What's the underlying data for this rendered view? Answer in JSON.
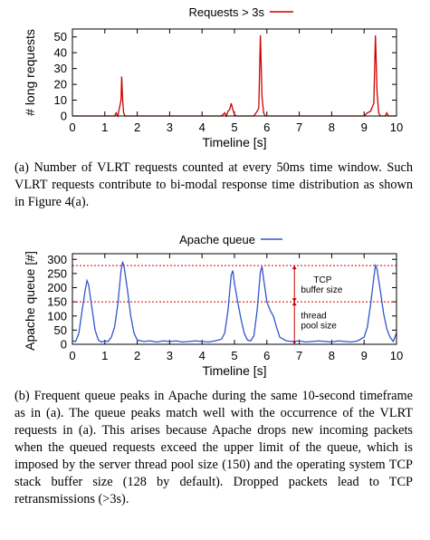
{
  "chart_data": [
    {
      "type": "line",
      "xlabel": "Timeline [s]",
      "ylabel": "# long requests",
      "xlim": [
        0,
        10
      ],
      "ylim": [
        0,
        55
      ],
      "xticks": [
        "0",
        "1",
        "2",
        "3",
        "4",
        "5",
        "6",
        "7",
        "8",
        "9",
        "10"
      ],
      "yticks": [
        "0",
        "10",
        "20",
        "30",
        "40",
        "50"
      ],
      "legend": "top-center",
      "grid": false,
      "series": [
        {
          "name": "Requests > 3s",
          "color": "#cc0000",
          "x": [
            0,
            1.3,
            1.35,
            1.4,
            1.45,
            1.5,
            1.52,
            1.55,
            1.58,
            1.62,
            1.7,
            4.6,
            4.7,
            4.75,
            4.8,
            4.85,
            4.9,
            4.95,
            5.0,
            5.05,
            5.1,
            5.6,
            5.7,
            5.75,
            5.8,
            5.85,
            5.9,
            5.95,
            6.0,
            9.0,
            9.1,
            9.2,
            9.3,
            9.35,
            9.4,
            9.45,
            9.5,
            9.65,
            9.7,
            9.75,
            10
          ],
          "y": [
            0,
            0,
            2,
            0,
            5,
            10,
            25,
            10,
            2,
            0,
            0,
            0,
            2,
            0,
            3,
            4,
            8,
            4,
            1,
            0,
            0,
            0,
            3,
            5,
            51,
            12,
            2,
            0,
            0,
            0,
            2,
            3,
            8,
            51,
            15,
            2,
            0,
            0,
            2,
            0,
            0
          ]
        }
      ]
    },
    {
      "type": "line",
      "xlabel": "Timeline [s]",
      "ylabel": "Apache queue [#]",
      "xlim": [
        0,
        10
      ],
      "ylim": [
        0,
        320
      ],
      "xticks": [
        "0",
        "1",
        "2",
        "3",
        "4",
        "5",
        "6",
        "7",
        "8",
        "9",
        "10"
      ],
      "yticks": [
        "0",
        "50",
        "100",
        "150",
        "200",
        "250",
        "300"
      ],
      "legend": "top-center",
      "grid": false,
      "reference_lines": [
        {
          "y": 278,
          "color": "#cc0000",
          "style": "dotted"
        },
        {
          "y": 150,
          "color": "#cc0000",
          "style": "dotted"
        }
      ],
      "annotations": [
        {
          "text": [
            "TCP",
            "buffer size"
          ],
          "x": 7.05,
          "y": 218
        },
        {
          "text": [
            "thread",
            "pool size"
          ],
          "x": 7.05,
          "y": 92
        }
      ],
      "series": [
        {
          "name": "Apache queue",
          "color": "#3355cc",
          "x": [
            0,
            0.1,
            0.2,
            0.3,
            0.4,
            0.45,
            0.5,
            0.55,
            0.6,
            0.7,
            0.8,
            0.9,
            1.0,
            1.1,
            1.2,
            1.3,
            1.4,
            1.5,
            1.55,
            1.6,
            1.7,
            1.8,
            1.9,
            2.0,
            2.2,
            2.4,
            2.6,
            2.8,
            3.0,
            3.2,
            3.4,
            3.6,
            3.8,
            4.0,
            4.2,
            4.4,
            4.6,
            4.7,
            4.8,
            4.9,
            4.95,
            5.0,
            5.1,
            5.2,
            5.3,
            5.4,
            5.5,
            5.6,
            5.7,
            5.8,
            5.85,
            5.9,
            6.0,
            6.1,
            6.2,
            6.3,
            6.4,
            6.6,
            6.8,
            7.0,
            7.2,
            7.4,
            7.6,
            7.8,
            8.0,
            8.2,
            8.4,
            8.6,
            8.8,
            9.0,
            9.1,
            9.2,
            9.3,
            9.35,
            9.4,
            9.5,
            9.6,
            9.7,
            9.8,
            9.9,
            10.0
          ],
          "y": [
            12,
            10,
            40,
            120,
            195,
            225,
            210,
            170,
            130,
            50,
            15,
            8,
            12,
            10,
            25,
            60,
            140,
            260,
            292,
            270,
            190,
            100,
            40,
            15,
            10,
            12,
            8,
            12,
            10,
            12,
            8,
            10,
            12,
            10,
            8,
            12,
            18,
            40,
            120,
            245,
            260,
            215,
            150,
            90,
            40,
            15,
            12,
            30,
            120,
            255,
            275,
            230,
            150,
            120,
            100,
            60,
            25,
            12,
            10,
            12,
            8,
            10,
            12,
            10,
            8,
            12,
            10,
            8,
            12,
            25,
            60,
            140,
            235,
            278,
            265,
            190,
            110,
            55,
            25,
            10,
            40
          ]
        }
      ]
    }
  ],
  "captions": {
    "a": "(a) Number of VLRT requests counted at every 50ms time window. Such VLRT requests contribute to bi-modal response time distribution as shown in Figure 4(a).",
    "b": "(b) Frequent queue peaks in Apache during the same 10-second timeframe as in (a). The queue peaks match well with the occurrence of the VLRT requests in (a). This arises because Apache drops new incoming packets when the queued requests exceed the upper limit of the queue, which is imposed by the server thread pool size (150) and the operating system TCP stack buffer size (128 by default). Dropped packets lead to TCP retransmissions (>3s)."
  }
}
